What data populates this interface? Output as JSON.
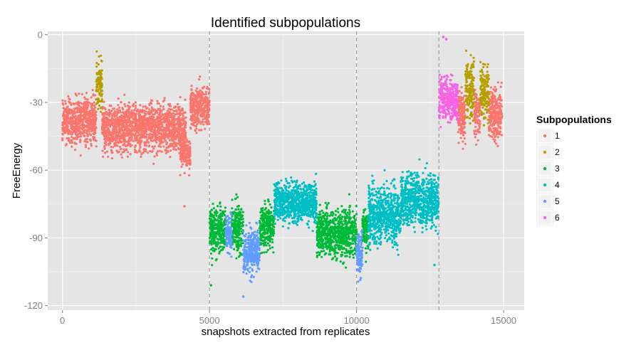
{
  "chart_data": {
    "type": "scatter",
    "title": "Identified subpopulations",
    "xlabel": "snapshots extracted from replicates",
    "ylabel": "FreeEnergy",
    "xlim": [
      -500,
      15700
    ],
    "ylim": [
      -122,
      1.5
    ],
    "x_ticks": [
      0,
      5000,
      10000,
      15000
    ],
    "y_ticks": [
      0,
      -30,
      -60,
      -90,
      -120
    ],
    "grid": true,
    "legend": {
      "title": "Subpopulations",
      "position": "right"
    },
    "vlines": [
      5000,
      10000,
      12800
    ],
    "series": [
      {
        "name": "1",
        "color": "#F8766D",
        "segments": [
          {
            "x": [
              0,
              1150
            ],
            "mean": -38,
            "spread": 13
          },
          {
            "x": [
              1350,
              4200
            ],
            "mean": -41,
            "spread": 13
          },
          {
            "x": [
              4000,
              4350
            ],
            "mean": -52,
            "spread": 9
          },
          {
            "x": [
              4350,
              5000
            ],
            "mean": -32,
            "spread": 11
          },
          {
            "x": [
              13450,
              13700
            ],
            "mean": -36,
            "spread": 14
          },
          {
            "x": [
              14000,
              14200
            ],
            "mean": -35,
            "spread": 13
          },
          {
            "x": [
              14500,
              14950
            ],
            "mean": -35,
            "spread": 14
          }
        ],
        "outliers": [
          [
            4150,
            -76
          ],
          [
            4450,
            -40
          ]
        ]
      },
      {
        "name": "2",
        "color": "#B79F00",
        "segments": [
          {
            "x": [
              1150,
              1350
            ],
            "mean": -22,
            "spread": 14
          },
          {
            "x": [
              13700,
              14000
            ],
            "mean": -24,
            "spread": 15
          },
          {
            "x": [
              14200,
              14500
            ],
            "mean": -25,
            "spread": 16
          }
        ],
        "outliers": []
      },
      {
        "name": "3",
        "color": "#00BA38",
        "segments": [
          {
            "x": [
              5000,
              5550
            ],
            "mean": -86,
            "spread": 13
          },
          {
            "x": [
              5750,
              6150
            ],
            "mean": -86,
            "spread": 13
          },
          {
            "x": [
              6700,
              7200
            ],
            "mean": -85,
            "spread": 13
          },
          {
            "x": [
              8650,
              10000
            ],
            "mean": -88,
            "spread": 13
          },
          {
            "x": [
              10200,
              10400
            ],
            "mean": -86,
            "spread": 12
          }
        ],
        "outliers": [
          [
            5050,
            -111
          ]
        ]
      },
      {
        "name": "4",
        "color": "#00BFC4",
        "segments": [
          {
            "x": [
              7200,
              8650
            ],
            "mean": -74,
            "spread": 11
          },
          {
            "x": [
              10400,
              11500
            ],
            "mean": -80,
            "spread": 16
          },
          {
            "x": [
              11500,
              12800
            ],
            "mean": -73,
            "spread": 15
          }
        ],
        "outliers": [
          [
            12650,
            -102
          ]
        ]
      },
      {
        "name": "5",
        "color": "#619CFF",
        "segments": [
          {
            "x": [
              5550,
              5750
            ],
            "mean": -88,
            "spread": 10
          },
          {
            "x": [
              6150,
              6700
            ],
            "mean": -96,
            "spread": 12
          },
          {
            "x": [
              10000,
              10200
            ],
            "mean": -97,
            "spread": 12
          }
        ],
        "outliers": [
          [
            6150,
            -116
          ]
        ]
      },
      {
        "name": "6",
        "color": "#F564E3",
        "segments": [
          {
            "x": [
              12800,
              13450
            ],
            "mean": -28,
            "spread": 12
          }
        ],
        "outliers": [
          [
            12950,
            -1
          ],
          [
            13050,
            -2
          ]
        ]
      }
    ]
  }
}
